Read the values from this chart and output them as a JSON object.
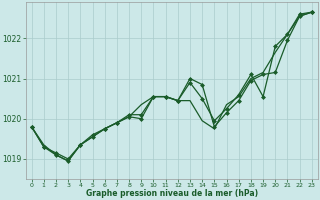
{
  "title": "Graphe pression niveau de la mer (hPa)",
  "xlabel": "Graphe pression niveau de la mer (hPa)",
  "background_color": "#cce8e8",
  "grid_color": "#aacccc",
  "line_color": "#1a5c2a",
  "marker_color": "#1a5c2a",
  "xlim": [
    -0.5,
    23.5
  ],
  "ylim": [
    1018.5,
    1022.9
  ],
  "yticks": [
    1019,
    1020,
    1021,
    1022
  ],
  "xticks": [
    0,
    1,
    2,
    3,
    4,
    5,
    6,
    7,
    8,
    9,
    10,
    11,
    12,
    13,
    14,
    15,
    16,
    17,
    18,
    19,
    20,
    21,
    22,
    23
  ],
  "series": [
    {
      "y": [
        1019.8,
        1019.35,
        1019.1,
        1018.95,
        1019.35,
        1019.55,
        1019.75,
        1019.9,
        1020.05,
        1020.35,
        1020.55,
        1020.55,
        1020.45,
        1020.45,
        1019.95,
        1019.75,
        1020.35,
        1020.55,
        1021.0,
        1021.15,
        1021.65,
        1022.1,
        1022.55,
        1022.65
      ],
      "markers": false,
      "lw": 0.9
    },
    {
      "y": [
        1019.8,
        1019.3,
        1019.1,
        1018.95,
        1019.35,
        1019.6,
        1019.75,
        1019.9,
        1020.1,
        1020.1,
        1020.55,
        1020.55,
        1020.45,
        1021.0,
        1020.85,
        1019.8,
        1020.15,
        1020.45,
        1020.95,
        1021.1,
        1021.15,
        1021.95,
        1022.55,
        1022.65
      ],
      "markers": true,
      "lw": 0.9
    },
    {
      "y": [
        1019.8,
        1019.3,
        1019.15,
        1019.0,
        1019.35,
        1019.55,
        1019.75,
        1019.9,
        1020.05,
        1020.0,
        1020.55,
        1020.55,
        1020.45,
        1020.9,
        1020.5,
        1019.95,
        1020.25,
        1020.6,
        1021.1,
        1020.55,
        1021.8,
        1022.1,
        1022.6,
        1022.65
      ],
      "markers": true,
      "lw": 0.9
    }
  ]
}
